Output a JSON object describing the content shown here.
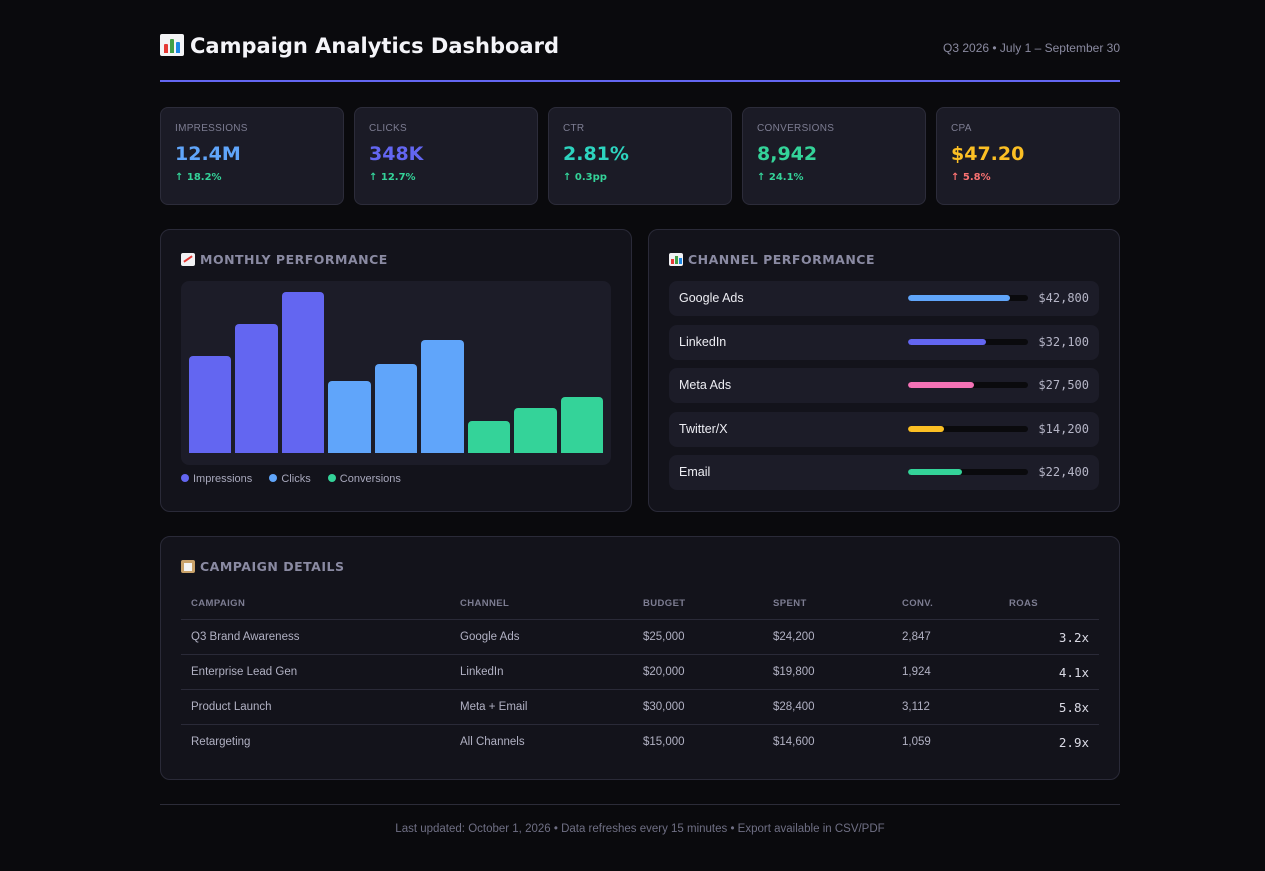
{
  "header": {
    "title": "Campaign Analytics Dashboard",
    "date_range": "Q3 2026 • July 1 – September 30",
    "title_icon": "bar-chart-icon"
  },
  "colors": {
    "accent": "#6366f1",
    "impressions": "#6366f1",
    "clicks": "#60a5fa",
    "conversions": "#34d399",
    "cpa": "#fbbf24",
    "negative": "#f87171"
  },
  "kpis": [
    {
      "label": "IMPRESSIONS",
      "value": "12.4M",
      "delta": "↑ 18.2%",
      "value_color": "#60a5fa",
      "delta_color": "#34d399"
    },
    {
      "label": "CLICKS",
      "value": "348K",
      "delta": "↑ 12.7%",
      "value_color": "#6366f1",
      "delta_color": "#34d399"
    },
    {
      "label": "CTR",
      "value": "2.81%",
      "delta": "↑ 0.3pp",
      "value_color": "#2dd4bf",
      "delta_color": "#34d399"
    },
    {
      "label": "CONVERSIONS",
      "value": "8,942",
      "delta": "↑ 24.1%",
      "value_color": "#34d399",
      "delta_color": "#34d399"
    },
    {
      "label": "CPA",
      "value": "$47.20",
      "delta": "↑ 5.8%",
      "value_color": "#fbbf24",
      "delta_color": "#f87171"
    }
  ],
  "monthly": {
    "title": "MONTHLY PERFORMANCE",
    "icon": "trend-chart-icon",
    "legend": [
      {
        "label": "Impressions",
        "color": "#6366f1"
      },
      {
        "label": "Clicks",
        "color": "#60a5fa"
      },
      {
        "label": "Conversions",
        "color": "#34d399"
      }
    ]
  },
  "chart_data": {
    "type": "bar",
    "title": "MONTHLY PERFORMANCE",
    "ylim": [
      0,
      100
    ],
    "series": [
      {
        "name": "Impressions",
        "color": "#6366f1",
        "values": [
          60,
          80,
          100
        ]
      },
      {
        "name": "Clicks",
        "color": "#60a5fa",
        "values": [
          45,
          55,
          70
        ]
      },
      {
        "name": "Conversions",
        "color": "#34d399",
        "values": [
          20,
          28,
          35
        ]
      }
    ],
    "legend": "bottom-left",
    "grid": false
  },
  "channels": {
    "title": "CHANNEL PERFORMANCE",
    "icon": "bar-chart-icon",
    "items": [
      {
        "name": "Google Ads",
        "amount": "$42,800",
        "fill": 0.85,
        "color": "#60a5fa"
      },
      {
        "name": "LinkedIn",
        "amount": "$32,100",
        "fill": 0.65,
        "color": "#6366f1"
      },
      {
        "name": "Meta Ads",
        "amount": "$27,500",
        "fill": 0.55,
        "color": "#f472b6"
      },
      {
        "name": "Twitter/X",
        "amount": "$14,200",
        "fill": 0.3,
        "color": "#fbbf24"
      },
      {
        "name": "Email",
        "amount": "$22,400",
        "fill": 0.45,
        "color": "#34d399"
      }
    ]
  },
  "campaigns": {
    "title": "CAMPAIGN DETAILS",
    "icon": "clipboard-icon",
    "columns": [
      "CAMPAIGN",
      "CHANNEL",
      "BUDGET",
      "SPENT",
      "CONV.",
      "ROAS"
    ],
    "rows": [
      [
        "Q3 Brand Awareness",
        "Google Ads",
        "$25,000",
        "$24,200",
        "2,847",
        "3.2x"
      ],
      [
        "Enterprise Lead Gen",
        "LinkedIn",
        "$20,000",
        "$19,800",
        "1,924",
        "4.1x"
      ],
      [
        "Product Launch",
        "Meta + Email",
        "$30,000",
        "$28,400",
        "3,112",
        "5.8x"
      ],
      [
        "Retargeting",
        "All Channels",
        "$15,000",
        "$14,600",
        "1,059",
        "2.9x"
      ]
    ]
  },
  "footer": {
    "text": "Last updated: October 1, 2026 • Data refreshes every 15 minutes • Export available in CSV/PDF"
  }
}
